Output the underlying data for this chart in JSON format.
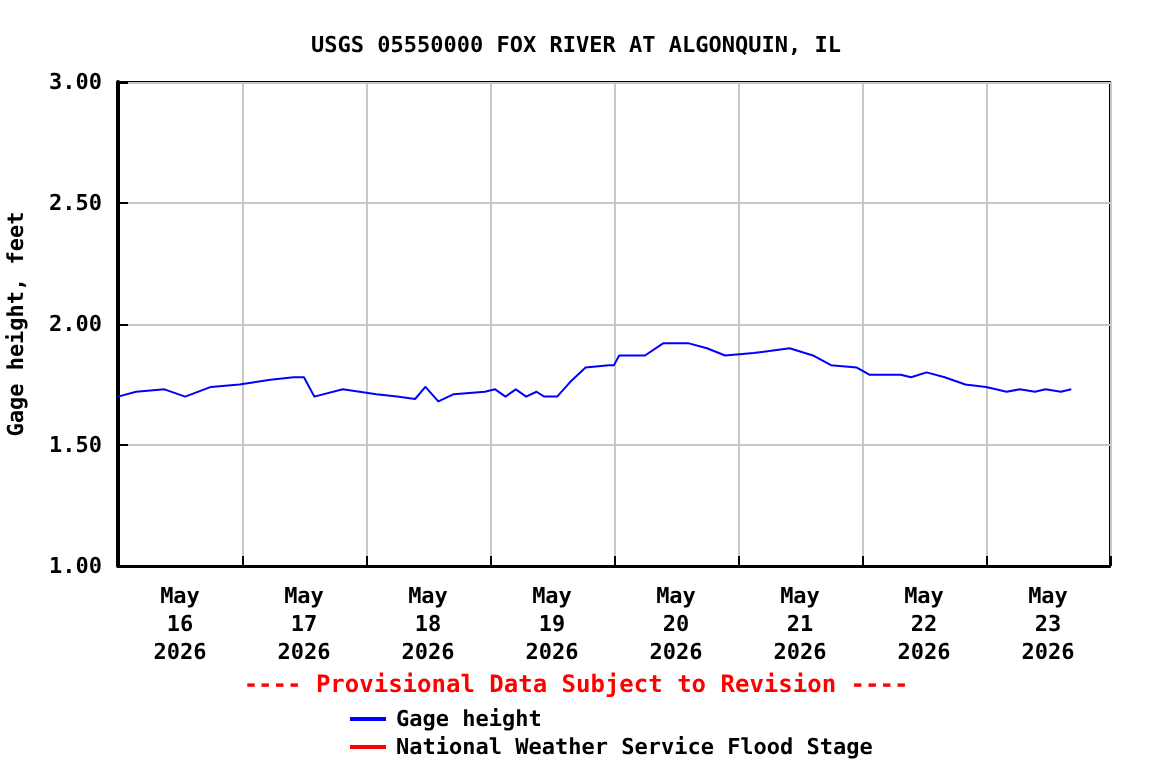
{
  "chart_data": {
    "type": "line",
    "title": "USGS 05550000 FOX RIVER AT ALGONQUIN, IL",
    "ylabel": "Gage height, feet",
    "annotations": [
      "---- Provisional Data Subject to Revision ----"
    ],
    "xlim": [
      "2026-05-16T00:00",
      "2026-05-24T00:00"
    ],
    "xticks": [
      {
        "value": "2026-05-16T00:00",
        "label": null
      },
      {
        "value": "2026-05-16T12:00",
        "label": "May\n16\n2026"
      },
      {
        "value": "2026-05-17T00:00",
        "label": null
      },
      {
        "value": "2026-05-17T12:00",
        "label": "May\n17\n2026"
      },
      {
        "value": "2026-05-18T00:00",
        "label": null
      },
      {
        "value": "2026-05-18T12:00",
        "label": "May\n18\n2026"
      },
      {
        "value": "2026-05-19T00:00",
        "label": null
      },
      {
        "value": "2026-05-19T12:00",
        "label": "May\n19\n2026"
      },
      {
        "value": "2026-05-20T00:00",
        "label": null
      },
      {
        "value": "2026-05-20T12:00",
        "label": "May\n20\n2026"
      },
      {
        "value": "2026-05-21T00:00",
        "label": null
      },
      {
        "value": "2026-05-21T12:00",
        "label": "May\n21\n2026"
      },
      {
        "value": "2026-05-22T00:00",
        "label": null
      },
      {
        "value": "2026-05-22T12:00",
        "label": "May\n22\n2026"
      },
      {
        "value": "2026-05-23T00:00",
        "label": null
      },
      {
        "value": "2026-05-23T12:00",
        "label": "May\n23\n2026"
      },
      {
        "value": "2026-05-24T00:00",
        "label": null
      }
    ],
    "ylim": [
      1,
      3
    ],
    "yticks": [
      {
        "value": 1,
        "label": "1.00"
      },
      {
        "value": 1.5,
        "label": "1.50"
      },
      {
        "value": 2,
        "label": "2.00"
      },
      {
        "value": 2.5,
        "label": "2.50"
      },
      {
        "value": 3,
        "label": "3.00"
      }
    ],
    "grid": true,
    "legend": "bottom",
    "marker": "none",
    "line_style": "solid",
    "series": [
      {
        "name": "Gage height",
        "color": "#0000ff",
        "x": [
          "2026-05-16T00:00",
          "2026-05-16T03:30",
          "2026-05-16T09:00",
          "2026-05-16T13:00",
          "2026-05-16T18:00",
          "2026-05-16T23:30",
          "2026-05-17T05:30",
          "2026-05-17T10:00",
          "2026-05-17T12:00",
          "2026-05-17T14:00",
          "2026-05-17T19:30",
          "2026-05-18T02:00",
          "2026-05-18T06:00",
          "2026-05-18T09:30",
          "2026-05-18T11:30",
          "2026-05-18T14:00",
          "2026-05-18T17:00",
          "2026-05-18T23:00",
          "2026-05-19T01:00",
          "2026-05-19T03:00",
          "2026-05-19T05:00",
          "2026-05-19T07:00",
          "2026-05-19T09:00",
          "2026-05-19T10:30",
          "2026-05-19T13:00",
          "2026-05-19T15:30",
          "2026-05-19T18:30",
          "2026-05-19T23:00",
          "2026-05-20T00:00",
          "2026-05-20T01:00",
          "2026-05-20T06:00",
          "2026-05-20T09:30",
          "2026-05-20T14:30",
          "2026-05-20T18:00",
          "2026-05-20T21:30",
          "2026-05-21T03:00",
          "2026-05-21T10:00",
          "2026-05-21T14:30",
          "2026-05-21T18:00",
          "2026-05-21T23:00",
          "2026-05-22T01:30",
          "2026-05-22T07:30",
          "2026-05-22T09:30",
          "2026-05-22T12:30",
          "2026-05-22T16:00",
          "2026-05-22T20:00",
          "2026-05-23T00:00",
          "2026-05-23T04:00",
          "2026-05-23T06:30",
          "2026-05-23T09:30",
          "2026-05-23T11:30",
          "2026-05-23T14:30",
          "2026-05-23T16:30"
        ],
        "values": [
          1.7,
          1.72,
          1.73,
          1.7,
          1.74,
          1.75,
          1.77,
          1.78,
          1.78,
          1.7,
          1.73,
          1.71,
          1.7,
          1.69,
          1.74,
          1.68,
          1.71,
          1.72,
          1.73,
          1.7,
          1.73,
          1.7,
          1.72,
          1.7,
          1.7,
          1.76,
          1.82,
          1.83,
          1.83,
          1.87,
          1.87,
          1.92,
          1.92,
          1.9,
          1.87,
          1.88,
          1.9,
          1.87,
          1.83,
          1.82,
          1.79,
          1.79,
          1.78,
          1.8,
          1.78,
          1.75,
          1.74,
          1.72,
          1.73,
          1.72,
          1.73,
          1.72,
          1.73
        ]
      },
      {
        "name": "National Weather Service Flood Stage",
        "color": "#ff0000"
      }
    ]
  }
}
